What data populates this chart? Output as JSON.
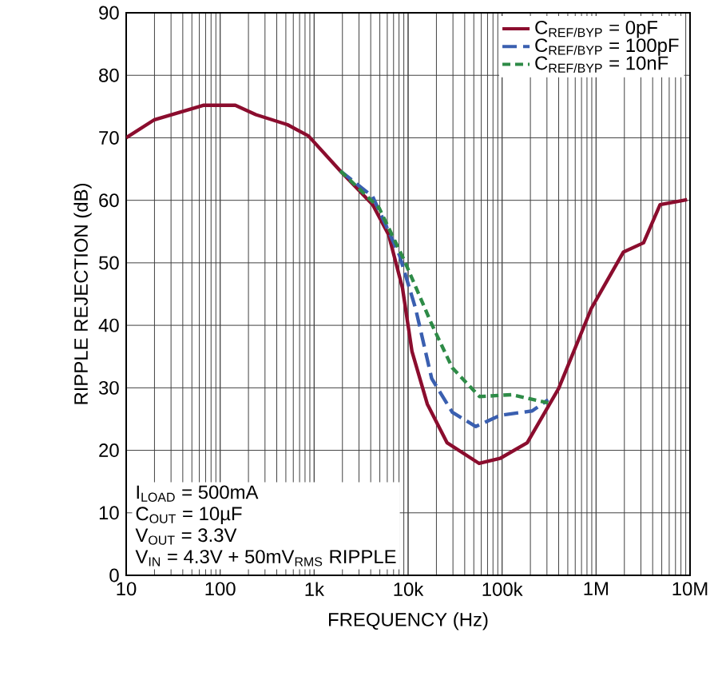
{
  "chart_data": {
    "type": "line",
    "xlabel": "FREQUENCY (Hz)",
    "ylabel": "RIPPLE REJECTION (dB)",
    "log": "x",
    "grid": true,
    "legend": "top right",
    "xlim": [
      10,
      10000000
    ],
    "ylim": [
      0,
      90
    ],
    "xticks": [
      10,
      100,
      {
        "value": 1000,
        "label": "1k"
      },
      {
        "value": 10000,
        "label": "10k"
      },
      {
        "value": 100000,
        "label": "100k"
      },
      {
        "value": 1000000,
        "label": "1M"
      },
      {
        "value": 10000000,
        "label": "10M"
      }
    ],
    "yticks": [
      0,
      10,
      20,
      30,
      40,
      50,
      60,
      70,
      80,
      90
    ],
    "series": [
      {
        "name": "C$_{REF/BYP}$ = 0pF",
        "color": "#8b0d2e",
        "line_style": "solid",
        "x": [
          10,
          20,
          66,
          145,
          240,
          520,
          870,
          1900,
          4200,
          6200,
          8700,
          11000,
          16000,
          26000,
          57000,
          95000,
          185000,
          400000,
          890000,
          1950000,
          3200000,
          4800000,
          9300000
        ],
        "values": [
          70,
          72.9,
          75.2,
          75.2,
          73.7,
          72.1,
          70.3,
          64.7,
          59.3,
          54.5,
          46,
          35.8,
          27.4,
          21.2,
          17.9,
          18.7,
          21.2,
          29.9,
          42.7,
          51.7,
          53.2,
          59.3,
          60.1
        ]
      },
      {
        "name": "C$_{REF/BYP}$ = 100pF",
        "color": "#3a5fb0",
        "line_style": "dashed",
        "x": [
          1900,
          4200,
          8100,
          12000,
          17800,
          29500,
          52500,
          95000,
          209000,
          309000
        ],
        "values": [
          64.7,
          60.6,
          51.2,
          42.7,
          31.5,
          26.1,
          23.8,
          25.6,
          26.3,
          28.1
        ]
      },
      {
        "name": "C$_{REF/BYP}$ = 10nF",
        "color": "#2e8b47",
        "line_style": "dashed",
        "x": [
          1900,
          4900,
          9100,
          17800,
          29500,
          57500,
          126000,
          309000
        ],
        "values": [
          64.7,
          58.8,
          50.4,
          40.2,
          33.2,
          28.6,
          28.9,
          27.6
        ]
      }
    ],
    "annotations": [
      "I$_{LOAD}$ = 500mA",
      "C$_{OUT}$ = 10µF",
      "V$_{OUT}$ = 3.3V",
      "V$_{IN}$ = 4.3V + 50mV$_{RMS}$ RIPPLE"
    ]
  }
}
